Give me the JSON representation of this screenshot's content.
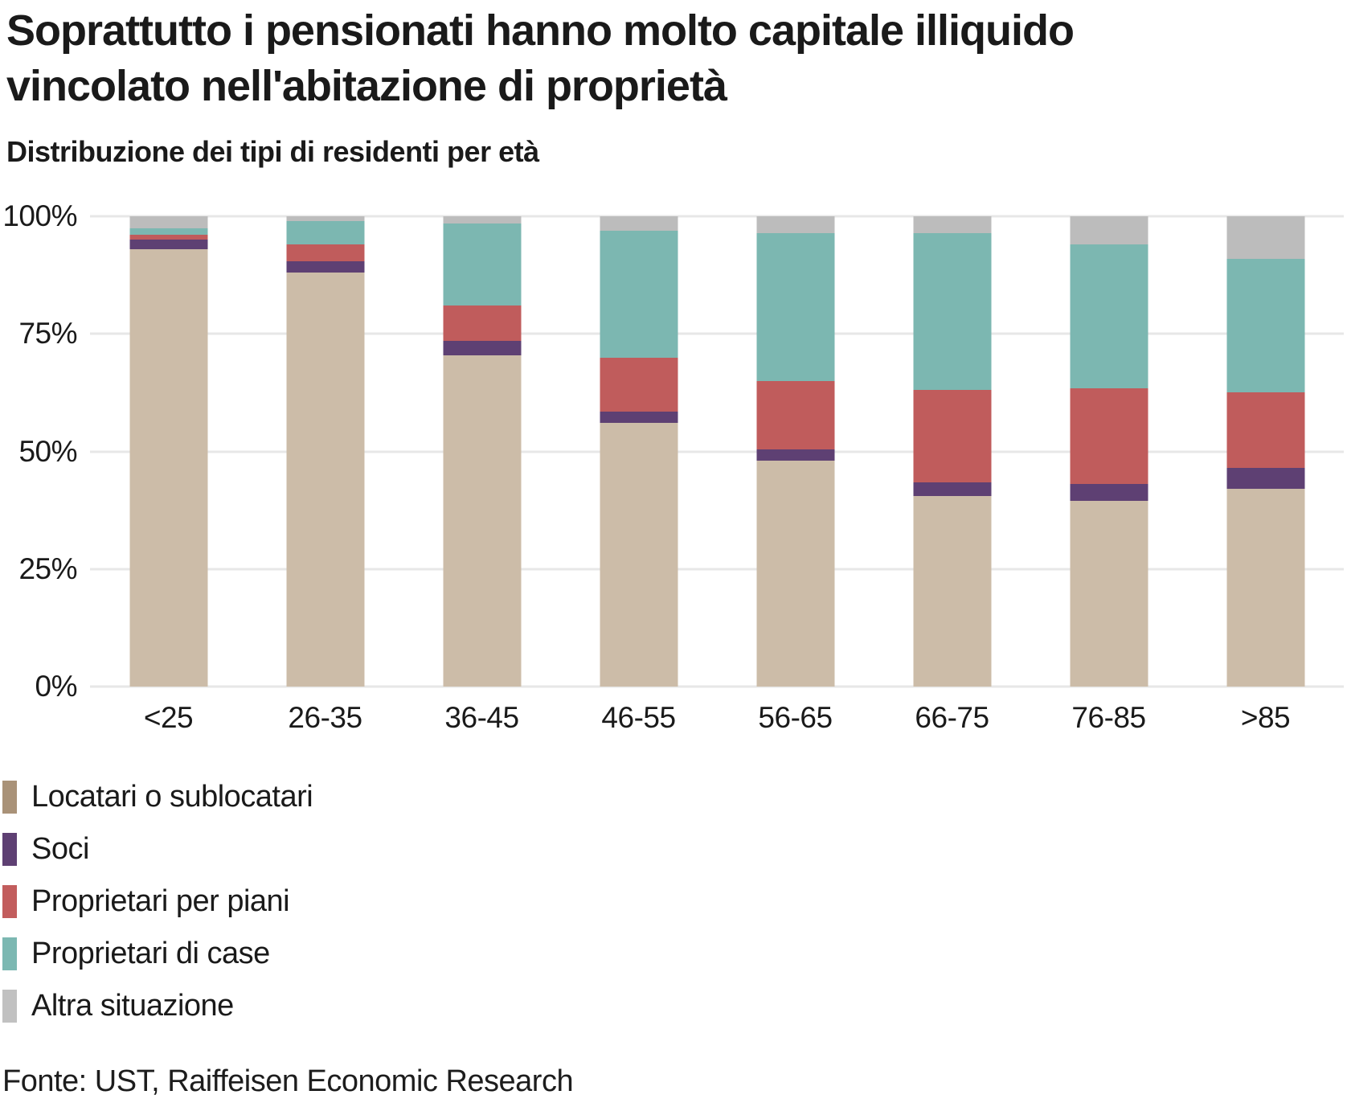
{
  "header": {
    "title_line1": "Soprattutto i pensionati hanno molto capitale illiquido",
    "title_line2": "vincolato nell'abitazione di proprietà",
    "subtitle": "Distribuzione dei tipi di residenti per età"
  },
  "footer": {
    "source": "Fonte: UST, Raiffeisen Economic Research"
  },
  "chart_data": {
    "type": "bar",
    "variant": "stacked-100-percent",
    "title": "Distribuzione dei tipi di residenti per età",
    "categories": [
      "<25",
      "26-35",
      "36-45",
      "46-55",
      "56-65",
      "66-75",
      "76-85",
      ">85"
    ],
    "series": [
      {
        "name": "Locatari o sublocatari",
        "color": "#ccbca8",
        "legend_color": "#a99278",
        "values": [
          93,
          88,
          70.5,
          56,
          48,
          40.5,
          39.5,
          42
        ]
      },
      {
        "name": "Soci",
        "color": "#5e4073",
        "legend_color": "#5e4073",
        "values": [
          2,
          2.5,
          3,
          2.5,
          2.5,
          3,
          3.5,
          4.5
        ]
      },
      {
        "name": "Proprietari per piani",
        "color": "#c05c5c",
        "legend_color": "#c25d5d",
        "values": [
          1,
          3.5,
          7.5,
          11.5,
          14.5,
          19.5,
          20.5,
          16
        ]
      },
      {
        "name": "Proprietari di case",
        "color": "#7cb7b1",
        "legend_color": "#7cb8b2",
        "values": [
          1.5,
          5,
          17.5,
          27,
          31.5,
          33.5,
          30.5,
          28.5
        ]
      },
      {
        "name": "Altra situazione",
        "color": "#bcbcbc",
        "legend_color": "#c1c1c1",
        "values": [
          2.5,
          1,
          1.5,
          3,
          3.5,
          3.5,
          6,
          9
        ]
      }
    ],
    "y_ticks": [
      "100%",
      "75%",
      "50%",
      "25%",
      "0%"
    ],
    "ylim": [
      0,
      100
    ],
    "grid": true,
    "gridline_color": "#e7e7e7",
    "legend_position": "bottom-left"
  }
}
